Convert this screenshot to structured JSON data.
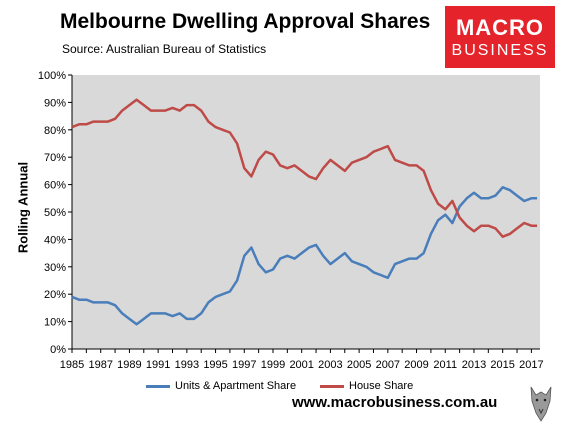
{
  "header": {
    "title": "Melbourne Dwelling Approval Shares",
    "source": "Source: Australian Bureau of Statistics"
  },
  "logo": {
    "line1": "MACRO",
    "line2": "BUSINESS"
  },
  "footer": {
    "url": "www.macrobusiness.com.au"
  },
  "colors": {
    "units": "#4a7ebb",
    "house": "#be4b48",
    "plot_bg": "#d9d9d9",
    "logo_bg": "#e5232b"
  },
  "chart_data": {
    "type": "line",
    "ylabel": "Rolling Annual",
    "xlabel": "",
    "xlim": [
      1985.0,
      2017.6
    ],
    "ylim": [
      0,
      100
    ],
    "x_ticks": [
      "1985",
      "1987",
      "1989",
      "1991",
      "1993",
      "1995",
      "1997",
      "1999",
      "2001",
      "2003",
      "2005",
      "2007",
      "2009",
      "2011",
      "2013",
      "2015",
      "2017"
    ],
    "y_ticks": [
      "0%",
      "10%",
      "20%",
      "30%",
      "40%",
      "50%",
      "60%",
      "70%",
      "80%",
      "90%",
      "100%"
    ],
    "legend": "bottom",
    "grid": false,
    "series": [
      {
        "name": "Units & Apartment Share",
        "x": [
          1985.0,
          1985.5,
          1986.0,
          1986.5,
          1987.0,
          1987.5,
          1988.0,
          1988.5,
          1989.0,
          1989.5,
          1990.0,
          1990.5,
          1991.0,
          1991.5,
          1992.0,
          1992.5,
          1993.0,
          1993.5,
          1994.0,
          1994.5,
          1995.0,
          1995.5,
          1996.0,
          1996.5,
          1997.0,
          1997.5,
          1998.0,
          1998.5,
          1999.0,
          1999.5,
          2000.0,
          2000.5,
          2001.0,
          2001.5,
          2002.0,
          2002.5,
          2003.0,
          2003.5,
          2004.0,
          2004.5,
          2005.0,
          2005.5,
          2006.0,
          2006.5,
          2007.0,
          2007.5,
          2008.0,
          2008.5,
          2009.0,
          2009.5,
          2010.0,
          2010.5,
          2011.0,
          2011.5,
          2012.0,
          2012.5,
          2013.0,
          2013.5,
          2014.0,
          2014.5,
          2015.0,
          2015.5,
          2016.0,
          2016.5,
          2017.0,
          2017.4
        ],
        "values": [
          19,
          18,
          18,
          17,
          17,
          17,
          16,
          13,
          11,
          9,
          11,
          13,
          13,
          13,
          12,
          13,
          11,
          11,
          13,
          17,
          19,
          20,
          21,
          25,
          34,
          37,
          31,
          28,
          29,
          33,
          34,
          33,
          35,
          37,
          38,
          34,
          31,
          33,
          35,
          32,
          31,
          30,
          28,
          27,
          26,
          31,
          32,
          33,
          33,
          35,
          42,
          47,
          49,
          46,
          52,
          55,
          57,
          55,
          55,
          56,
          59,
          58,
          56,
          54,
          55,
          55
        ]
      },
      {
        "name": "House Share",
        "x": [
          1985.0,
          1985.5,
          1986.0,
          1986.5,
          1987.0,
          1987.5,
          1988.0,
          1988.5,
          1989.0,
          1989.5,
          1990.0,
          1990.5,
          1991.0,
          1991.5,
          1992.0,
          1992.5,
          1993.0,
          1993.5,
          1994.0,
          1994.5,
          1995.0,
          1995.5,
          1996.0,
          1996.5,
          1997.0,
          1997.5,
          1998.0,
          1998.5,
          1999.0,
          1999.5,
          2000.0,
          2000.5,
          2001.0,
          2001.5,
          2002.0,
          2002.5,
          2003.0,
          2003.5,
          2004.0,
          2004.5,
          2005.0,
          2005.5,
          2006.0,
          2006.5,
          2007.0,
          2007.5,
          2008.0,
          2008.5,
          2009.0,
          2009.5,
          2010.0,
          2010.5,
          2011.0,
          2011.5,
          2012.0,
          2012.5,
          2013.0,
          2013.5,
          2014.0,
          2014.5,
          2015.0,
          2015.5,
          2016.0,
          2016.5,
          2017.0,
          2017.4
        ],
        "values": [
          81,
          82,
          82,
          83,
          83,
          83,
          84,
          87,
          89,
          91,
          89,
          87,
          87,
          87,
          88,
          87,
          89,
          89,
          87,
          83,
          81,
          80,
          79,
          75,
          66,
          63,
          69,
          72,
          71,
          67,
          66,
          67,
          65,
          63,
          62,
          66,
          69,
          67,
          65,
          68,
          69,
          70,
          72,
          73,
          74,
          69,
          68,
          67,
          67,
          65,
          58,
          53,
          51,
          54,
          48,
          45,
          43,
          45,
          45,
          44,
          41,
          42,
          44,
          46,
          45,
          45
        ]
      }
    ]
  }
}
